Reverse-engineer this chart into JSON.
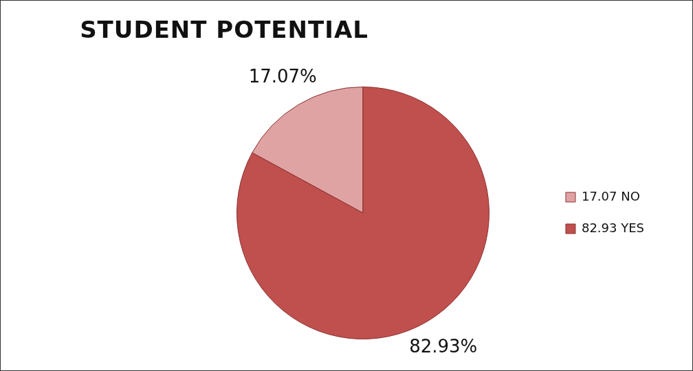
{
  "chart_data": {
    "type": "pie",
    "title": "STUDENT POTENTIAL",
    "categories": [
      "17.07 NO",
      "82.93 YES"
    ],
    "values": [
      17.07,
      82.93
    ],
    "colors": [
      "#e0a3a3",
      "#c0504d"
    ],
    "value_labels": [
      "17.07%",
      "82.93%"
    ],
    "legend": "right"
  }
}
